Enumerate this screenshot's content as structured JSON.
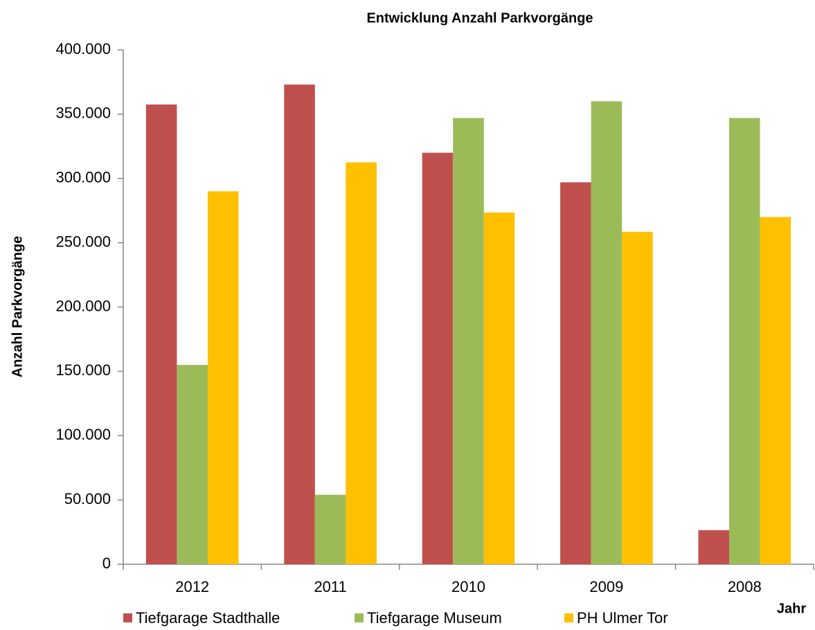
{
  "chart_data": {
    "type": "bar",
    "title": "Entwicklung Anzahl Parkvorgänge",
    "y_label": "Anzahl Parkvorgänge",
    "x_label": "Jahr",
    "categories": [
      "2012",
      "2011",
      "2010",
      "2009",
      "2008"
    ],
    "series": [
      {
        "name": "Tiefgarage Stadthalle",
        "color": "#c0504d",
        "values": [
          357500,
          373000,
          320000,
          297000,
          26500
        ]
      },
      {
        "name": "Tiefgarage Museum",
        "color": "#9bbb59",
        "values": [
          155000,
          54000,
          347000,
          360000,
          347000
        ]
      },
      {
        "name": "PH Ulmer Tor",
        "color": "#ffc000",
        "values": [
          290000,
          312500,
          273500,
          258500,
          270000
        ]
      }
    ],
    "ylim": [
      0,
      400000
    ],
    "yticks": [
      0,
      {
        "value": 50000,
        "label": "50.000"
      },
      {
        "value": 100000,
        "label": "100.000"
      },
      {
        "value": 150000,
        "label": "150.000"
      },
      {
        "value": 200000,
        "label": "200.000"
      },
      {
        "value": 250000,
        "label": "250.000"
      },
      {
        "value": 300000,
        "label": "300.000"
      },
      {
        "value": 350000,
        "label": "350.000"
      },
      {
        "value": 400000,
        "label": "400.000"
      }
    ],
    "grid": false,
    "legend": "bottom"
  }
}
